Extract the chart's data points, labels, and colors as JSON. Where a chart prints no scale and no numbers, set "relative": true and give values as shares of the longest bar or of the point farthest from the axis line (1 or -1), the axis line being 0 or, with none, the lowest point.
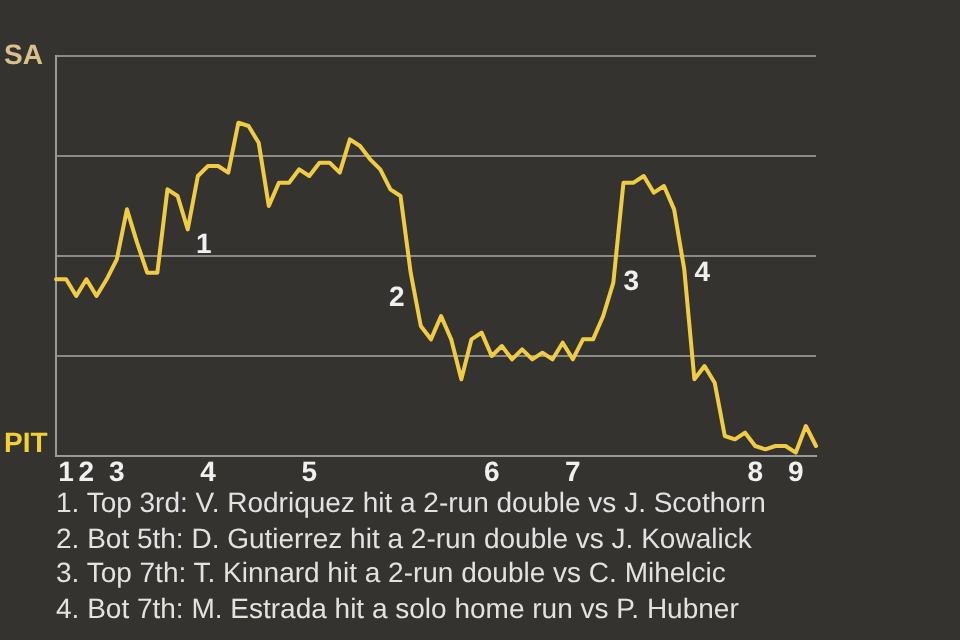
{
  "chart_data": {
    "type": "line",
    "relative": true,
    "categories": [
      null,
      "1",
      null,
      "2",
      null,
      null,
      "3",
      null,
      null,
      null,
      null,
      null,
      null,
      null,
      null,
      "4",
      null,
      null,
      null,
      null,
      null,
      null,
      null,
      null,
      null,
      "5",
      null,
      null,
      null,
      null,
      null,
      null,
      null,
      null,
      null,
      null,
      null,
      null,
      null,
      null,
      null,
      null,
      null,
      "6",
      null,
      null,
      null,
      null,
      null,
      null,
      null,
      "7",
      null,
      null,
      null,
      null,
      null,
      null,
      null,
      null,
      null,
      null,
      null,
      null,
      null,
      null,
      null,
      null,
      null,
      "8",
      null,
      null,
      null,
      "9",
      null,
      null
    ],
    "series": [
      {
        "values": [
          0.53,
          0.53,
          0.48,
          0.53,
          0.48,
          0.53,
          0.59,
          0.74,
          0.64,
          0.55,
          0.55,
          0.8,
          0.78,
          0.68,
          0.84,
          0.87,
          0.87,
          0.85,
          1,
          0.99,
          0.94,
          0.75,
          0.82,
          0.82,
          0.86,
          0.84,
          0.88,
          0.88,
          0.85,
          0.95,
          0.93,
          0.89,
          0.86,
          0.8,
          0.78,
          0.55,
          0.39,
          0.35,
          0.42,
          0.35,
          0.23,
          0.35,
          0.37,
          0.3,
          0.33,
          0.29,
          0.32,
          0.29,
          0.31,
          0.29,
          0.34,
          0.29,
          0.35,
          0.35,
          0.42,
          0.52,
          0.82,
          0.82,
          0.84,
          0.79,
          0.81,
          0.74,
          0.56,
          0.23,
          0.27,
          0.22,
          0.06,
          0.05,
          0.07,
          0.03,
          0.02,
          0.03,
          0.03,
          0.01,
          0.09,
          0.03
        ],
        "color": "#f0cc45"
      }
    ],
    "grid": "y",
    "marker": "none",
    "line_style": "solid",
    "legend": false,
    "annotations": [
      "SA",
      "PIT",
      "1",
      "2",
      "3",
      "4",
      "1. Top 3rd: V. Rodriquez hit a 2-run double vs J. Scothorn",
      "2. Bot 5th: D. Gutierrez hit a 2-run double vs J. Kowalick",
      "3. Top 7th: T. Kinnard hit a 2-run double vs C. Mihelcic",
      "4. Bot 7th: M. Estrada hit a solo home run vs P. Hubner"
    ]
  }
}
